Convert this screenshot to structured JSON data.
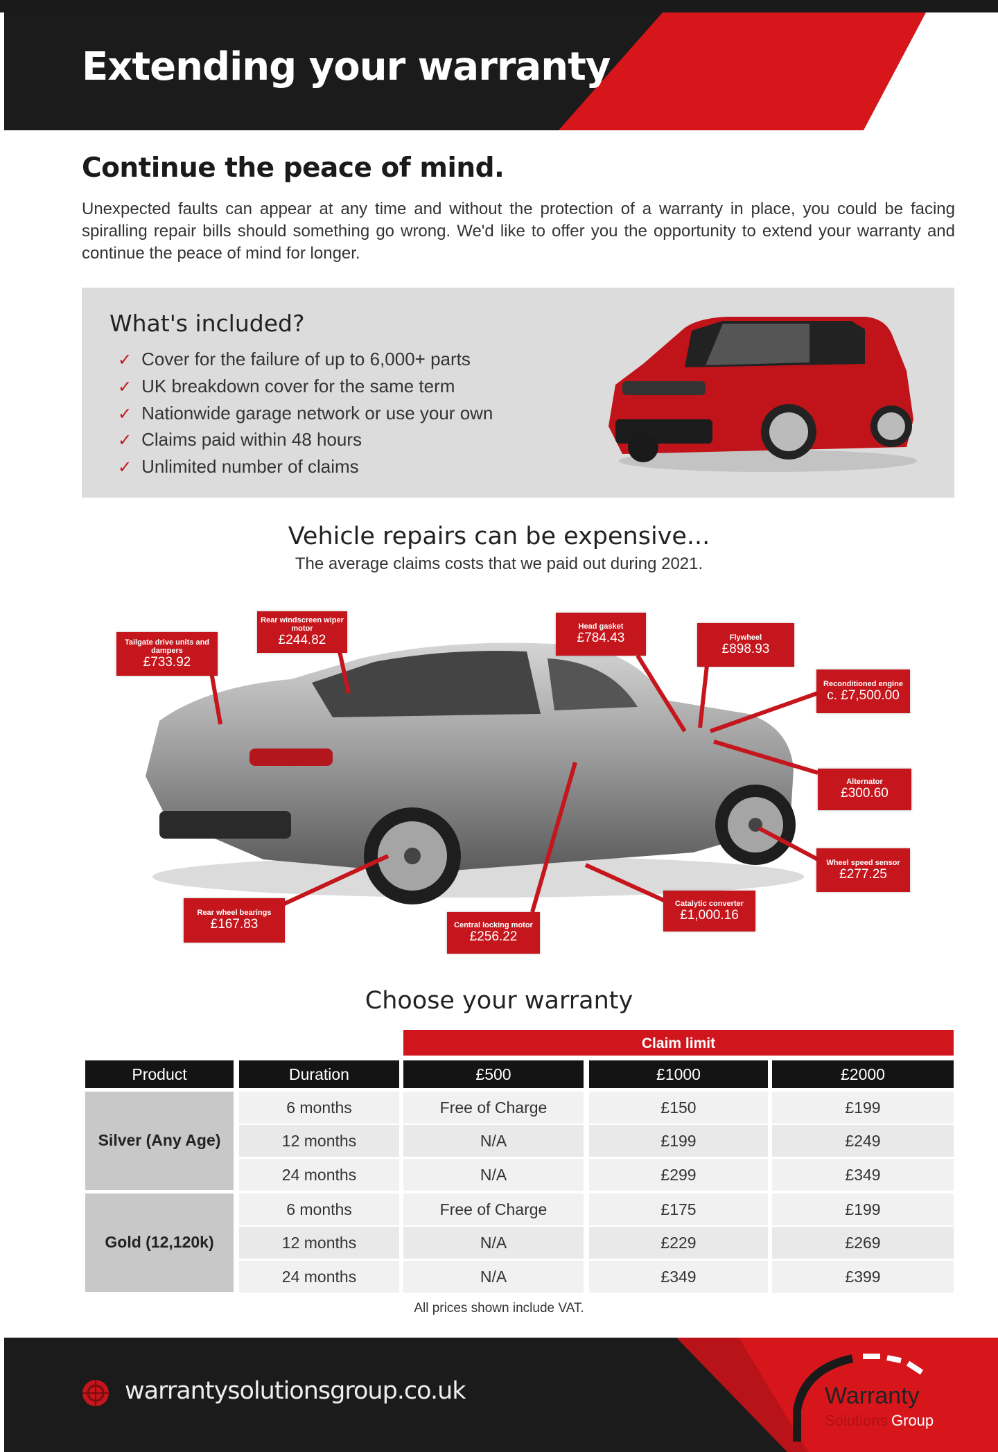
{
  "header": {
    "title": "Extending your warranty"
  },
  "intro": {
    "heading": "Continue the peace of mind.",
    "body": "Unexpected faults can appear at any time and without the protection of a warranty in place, you could be facing spiralling repair bills should something go wrong. We'd like to offer you the opportunity to extend your warranty and continue the peace of mind for longer."
  },
  "included": {
    "title": "What's included?",
    "items": [
      "Cover for the failure of up to 6,000+ parts",
      "UK breakdown cover for the same term",
      "Nationwide garage network or use your own",
      "Claims paid within 48 hours",
      "Unlimited number of claims"
    ]
  },
  "repairs": {
    "title": "Vehicle repairs can be expensive...",
    "subtitle": "The average claims costs that we paid out during 2021.",
    "callouts": [
      {
        "label": "Tailgate drive units and dampers",
        "value": "£733.92"
      },
      {
        "label": "Rear windscreen wiper motor",
        "value": "£244.82"
      },
      {
        "label": "Head gasket",
        "value": "£784.43"
      },
      {
        "label": "Flywheel",
        "value": "£898.93"
      },
      {
        "label": "Reconditioned engine",
        "value": "c. £7,500.00"
      },
      {
        "label": "Alternator",
        "value": "£300.60"
      },
      {
        "label": "Wheel speed sensor",
        "value": "£277.25"
      },
      {
        "label": "Catalytic converter",
        "value": "£1,000.16"
      },
      {
        "label": "Central locking motor",
        "value": "£256.22"
      },
      {
        "label": "Rear wheel bearings",
        "value": "£167.83"
      }
    ]
  },
  "warranty": {
    "title": "Choose your warranty",
    "claim_limit": "Claim limit",
    "headers": [
      "Product",
      "Duration",
      "£500",
      "£1000",
      "£2000"
    ],
    "products": [
      {
        "name": "Silver (Any Age)",
        "rows": [
          [
            "6 months",
            "Free of Charge",
            "£150",
            "£199"
          ],
          [
            "12 months",
            "N/A",
            "£199",
            "£249"
          ],
          [
            "24 months",
            "N/A",
            "£299",
            "£349"
          ]
        ]
      },
      {
        "name": "Gold (12,120k)",
        "rows": [
          [
            "6 months",
            "Free of Charge",
            "£175",
            "£199"
          ],
          [
            "12 months",
            "N/A",
            "£229",
            "£269"
          ],
          [
            "24 months",
            "N/A",
            "£349",
            "£399"
          ]
        ]
      }
    ],
    "note": "All prices shown include VAT."
  },
  "footer": {
    "url": "warrantysolutionsgroup.co.uk",
    "logo_text": [
      "Warranty",
      "Solutions",
      "Group"
    ]
  },
  "colors": {
    "accent": "#c4161c",
    "dark": "#1b1b1b",
    "panel": "#dcdcdc"
  }
}
